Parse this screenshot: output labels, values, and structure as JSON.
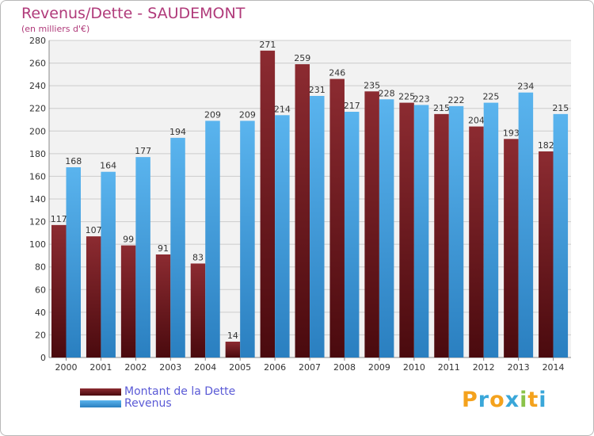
{
  "title": "Revenus/Dette - SAUDEMONT",
  "subtitle": "(en milliers d'€)",
  "logo": {
    "letters": [
      "P",
      "r",
      "o",
      "x",
      "i",
      "t",
      "i"
    ],
    "colors": [
      "#f4a21d",
      "#3aa7d9",
      "#f4a21d",
      "#3aa7d9",
      "#8bc34a",
      "#f4a21d",
      "#3aa7d9"
    ]
  },
  "colors": {
    "dette": "#7a1c22",
    "revenus": "#3399dd",
    "axis_text": "#333333",
    "grid": "#cccccc",
    "background": "#f2f2f2"
  },
  "chart_data": {
    "type": "bar",
    "categories": [
      "2000",
      "2001",
      "2002",
      "2003",
      "2004",
      "2005",
      "2006",
      "2007",
      "2008",
      "2009",
      "2010",
      "2011",
      "2012",
      "2013",
      "2014"
    ],
    "series": [
      {
        "name": "Montant de la Dette",
        "values": [
          117,
          107,
          99,
          91,
          83,
          14,
          271,
          259,
          246,
          235,
          225,
          215,
          204,
          193,
          182
        ]
      },
      {
        "name": "Revenus",
        "values": [
          168,
          164,
          177,
          194,
          209,
          209,
          214,
          231,
          217,
          228,
          223,
          222,
          225,
          234,
          215
        ]
      }
    ],
    "ylim": [
      0,
      280
    ],
    "yticks": [
      0,
      20,
      40,
      60,
      80,
      100,
      120,
      140,
      160,
      180,
      200,
      220,
      240,
      260,
      280
    ],
    "grid": true,
    "legend": "bottom-left"
  }
}
